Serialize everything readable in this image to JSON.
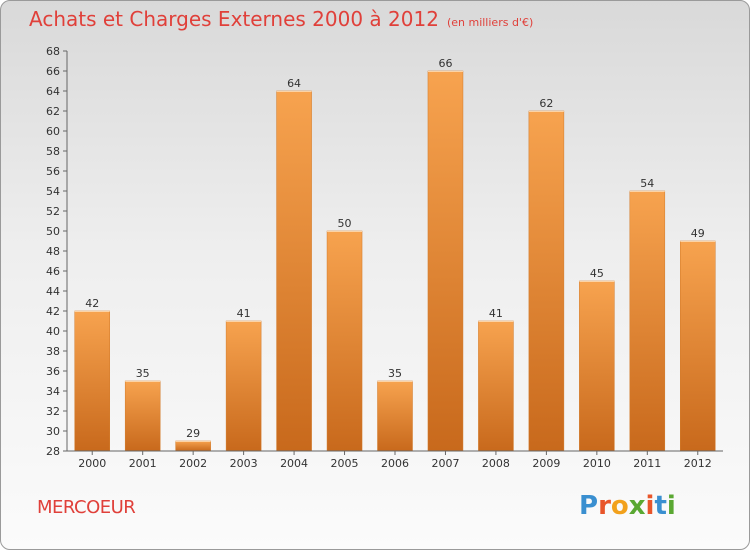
{
  "title": "Achats et Charges Externes 2000 à 2012",
  "subtitle": "(en milliers d'€)",
  "place": "MERCOEUR",
  "brand": {
    "letters": [
      "P",
      "r",
      "o",
      "x",
      "i",
      "t",
      "i"
    ],
    "colors": [
      "#3a8fd0",
      "#e8552a",
      "#f2a11c",
      "#5aa832",
      "#e8552a",
      "#3a8fd0",
      "#5aa832"
    ]
  },
  "colors": {
    "bar_top": "#f7a34f",
    "bar_bottom": "#c8691c",
    "title": "#e0403a"
  },
  "chart_data": {
    "type": "bar",
    "categories": [
      "2000",
      "2001",
      "2002",
      "2003",
      "2004",
      "2005",
      "2006",
      "2007",
      "2008",
      "2009",
      "2010",
      "2011",
      "2012"
    ],
    "values": [
      42,
      35,
      29,
      41,
      64,
      50,
      35,
      66,
      41,
      62,
      45,
      54,
      49
    ],
    "ylim": [
      28,
      68
    ],
    "yticks": [
      28,
      30,
      32,
      34,
      36,
      38,
      40,
      42,
      44,
      46,
      48,
      50,
      52,
      54,
      56,
      58,
      60,
      62,
      64,
      66,
      68
    ],
    "grid": false,
    "title": "Achats et Charges Externes 2000 à 2012",
    "xlabel": "",
    "ylabel": ""
  }
}
